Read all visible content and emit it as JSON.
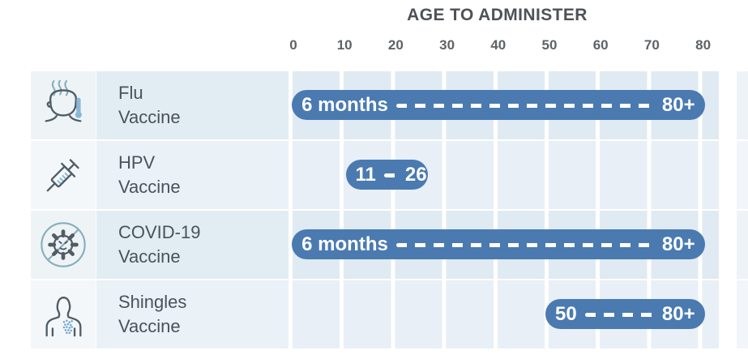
{
  "header": {
    "title": "AGE TO ADMINISTER"
  },
  "axis": {
    "ticks": [
      "0",
      "10",
      "20",
      "30",
      "40",
      "50",
      "60",
      "70",
      "80"
    ]
  },
  "rows": [
    {
      "icon": "fever-person-icon",
      "label_line1": "Flu",
      "label_line2": "Vaccine"
    },
    {
      "icon": "syringe-icon",
      "label_line1": "HPV",
      "label_line2": "Vaccine"
    },
    {
      "icon": "covid-virus-icon",
      "label_line1": "COVID-19",
      "label_line2": "Vaccine"
    },
    {
      "icon": "shingles-torso-icon",
      "label_line1": "Shingles",
      "label_line2": "Vaccine"
    }
  ],
  "chart_data": {
    "type": "bar",
    "orientation": "horizontal-range",
    "title": "AGE TO ADMINISTER",
    "x_ticks": [
      0,
      10,
      20,
      30,
      40,
      50,
      60,
      70,
      80
    ],
    "xlim": [
      0,
      89
    ],
    "grid": true,
    "categories": [
      "Flu Vaccine",
      "HPV Vaccine",
      "COVID-19 Vaccine",
      "Shingles Vaccine"
    ],
    "bars": [
      {
        "category": "Flu Vaccine",
        "start_age": 0.5,
        "end_age": 80,
        "start_label": "6 months",
        "end_label": "80+"
      },
      {
        "category": "HPV Vaccine",
        "start_age": 11,
        "end_age": 26,
        "start_label": "11",
        "end_label": "26"
      },
      {
        "category": "COVID-19 Vaccine",
        "start_age": 0.5,
        "end_age": 80,
        "start_label": "6 months",
        "end_label": "80+"
      },
      {
        "category": "Shingles Vaccine",
        "start_age": 50,
        "end_age": 80,
        "start_label": "50",
        "end_label": "80+"
      }
    ]
  },
  "colors": {
    "bar": "#4a7ab0",
    "bar_text": "#ffffff",
    "col_odd": "#e0eaf3",
    "col_even": "#e8eff6",
    "label_cell_odd": "#e2ecf3",
    "label_cell_even": "#eaf1f7",
    "icon_cell_odd": "#eef3f6",
    "icon_cell_even": "#f4f7f9",
    "title_text": "#4e5257",
    "tick_text": "#5e6367",
    "row_label_text": "#4a525b",
    "icon_stroke": "#505c66",
    "icon_accent": "#8bb7d7",
    "icon_teal": "#85afbc",
    "rash": "#6ea6cd"
  }
}
